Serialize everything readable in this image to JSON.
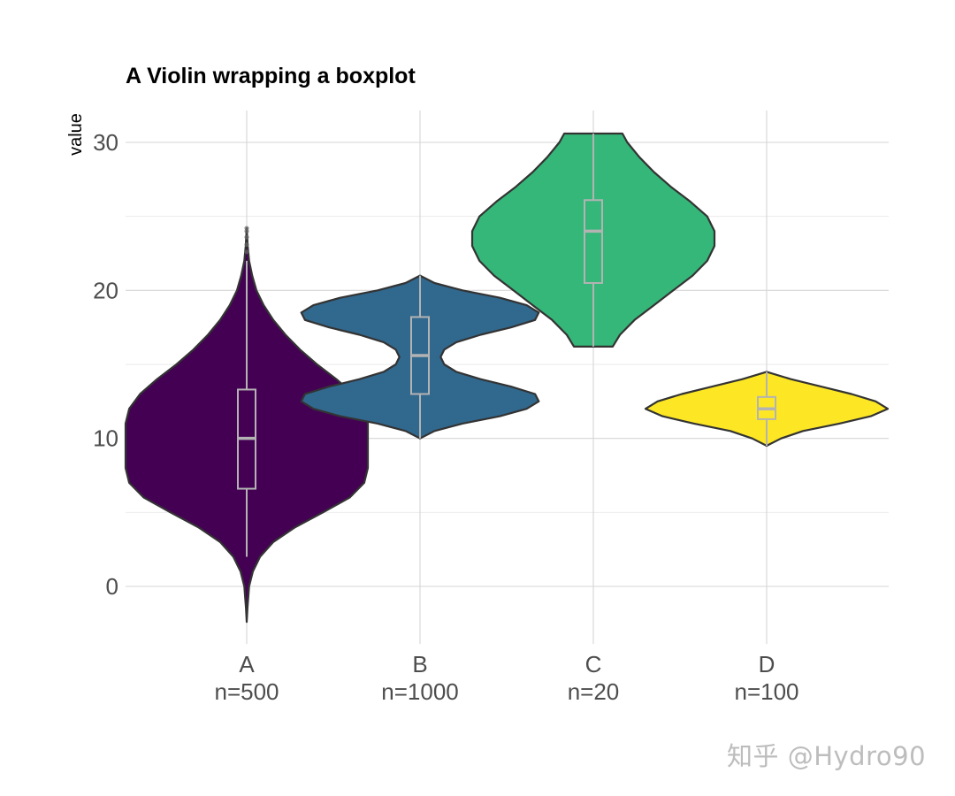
{
  "chart_data": {
    "type": "violin",
    "title": "A Violin wrapping a boxplot",
    "xlabel": "",
    "ylabel": "value",
    "ylim": [
      -4,
      32
    ],
    "yticks": [
      0,
      10,
      20,
      30
    ],
    "grid": true,
    "legend": "none",
    "categories": [
      {
        "name": "A",
        "n_label": "n=500",
        "color": "#440154",
        "min": -2.4,
        "max": 24.2,
        "box": {
          "q1": 6.6,
          "median": 10.0,
          "q3": 13.3,
          "lower": 2.0,
          "upper": 22.0
        },
        "outliers": [
          22.6,
          23.1,
          23.6,
          24.0,
          24.2
        ],
        "profile": [
          [
            -2.4,
            0.0
          ],
          [
            -1.5,
            0.006
          ],
          [
            0,
            0.02
          ],
          [
            1,
            0.05
          ],
          [
            2,
            0.11
          ],
          [
            3,
            0.22
          ],
          [
            4,
            0.4
          ],
          [
            5,
            0.63
          ],
          [
            6,
            0.85
          ],
          [
            7,
            0.97
          ],
          [
            8,
            1.0
          ],
          [
            9,
            1.0
          ],
          [
            10,
            1.0
          ],
          [
            11,
            1.0
          ],
          [
            12,
            0.97
          ],
          [
            13,
            0.88
          ],
          [
            14,
            0.74
          ],
          [
            15,
            0.58
          ],
          [
            16,
            0.44
          ],
          [
            17,
            0.32
          ],
          [
            18,
            0.22
          ],
          [
            19,
            0.14
          ],
          [
            20,
            0.08
          ],
          [
            21,
            0.045
          ],
          [
            22,
            0.02
          ],
          [
            23,
            0.008
          ],
          [
            24.2,
            0.0
          ]
        ]
      },
      {
        "name": "B",
        "n_label": "n=1000",
        "color": "#31688e",
        "min": 10.0,
        "max": 21.0,
        "box": {
          "q1": 13.0,
          "median": 15.6,
          "q3": 18.2,
          "lower": 10.0,
          "upper": 21.0
        },
        "outliers": [],
        "profile": [
          [
            10.0,
            0.0
          ],
          [
            10.5,
            0.12
          ],
          [
            11,
            0.35
          ],
          [
            11.5,
            0.66
          ],
          [
            12,
            0.88
          ],
          [
            12.5,
            0.98
          ],
          [
            13,
            0.95
          ],
          [
            13.5,
            0.75
          ],
          [
            14,
            0.5
          ],
          [
            14.5,
            0.3
          ],
          [
            15,
            0.2
          ],
          [
            15.5,
            0.17
          ],
          [
            16,
            0.2
          ],
          [
            16.5,
            0.3
          ],
          [
            17,
            0.5
          ],
          [
            17.5,
            0.75
          ],
          [
            18,
            0.95
          ],
          [
            18.5,
            0.98
          ],
          [
            19,
            0.88
          ],
          [
            19.5,
            0.66
          ],
          [
            20,
            0.35
          ],
          [
            20.5,
            0.12
          ],
          [
            21.0,
            0.0
          ]
        ]
      },
      {
        "name": "C",
        "n_label": "n=20",
        "color": "#35b779",
        "min": 16.2,
        "max": 30.6,
        "box": {
          "q1": 20.5,
          "median": 24.0,
          "q3": 26.1,
          "lower": 16.2,
          "upper": 30.6
        },
        "outliers": [],
        "profile": [
          [
            16.2,
            0.16
          ],
          [
            17,
            0.22
          ],
          [
            18,
            0.34
          ],
          [
            19,
            0.5
          ],
          [
            20,
            0.66
          ],
          [
            21,
            0.82
          ],
          [
            22,
            0.94
          ],
          [
            23,
            1.0
          ],
          [
            24,
            1.0
          ],
          [
            25,
            0.94
          ],
          [
            26,
            0.8
          ],
          [
            27,
            0.64
          ],
          [
            28,
            0.5
          ],
          [
            29,
            0.38
          ],
          [
            30,
            0.28
          ],
          [
            30.6,
            0.24
          ]
        ]
      },
      {
        "name": "D",
        "n_label": "n=100",
        "color": "#fde725",
        "min": 9.5,
        "max": 14.5,
        "box": {
          "q1": 11.3,
          "median": 12.0,
          "q3": 12.8,
          "lower": 9.5,
          "upper": 14.5
        },
        "outliers": [],
        "profile": [
          [
            9.5,
            0.0
          ],
          [
            10,
            0.12
          ],
          [
            10.5,
            0.3
          ],
          [
            11,
            0.6
          ],
          [
            11.5,
            0.86
          ],
          [
            12,
            1.0
          ],
          [
            12.5,
            0.9
          ],
          [
            13,
            0.7
          ],
          [
            13.5,
            0.45
          ],
          [
            14,
            0.2
          ],
          [
            14.5,
            0.0
          ]
        ]
      }
    ]
  },
  "watermark": "知乎 @Hydro90"
}
